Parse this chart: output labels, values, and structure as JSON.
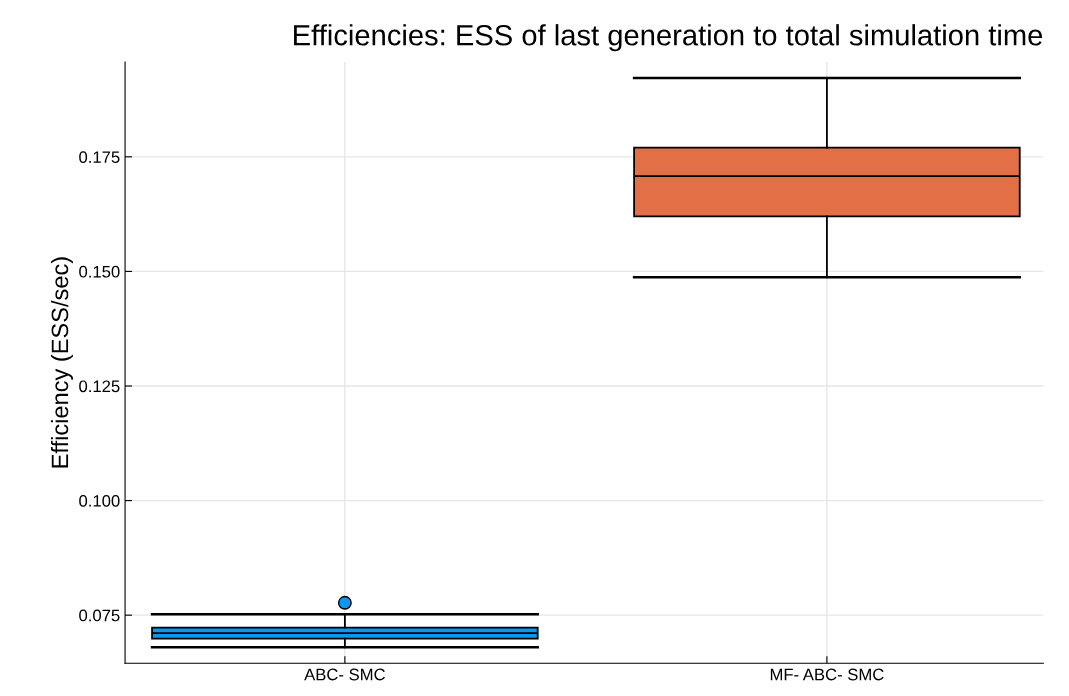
{
  "chart_data": {
    "type": "box",
    "title": "Efficiencies: ESS of last generation to total simulation time",
    "ylabel": "Efficiency (ESS/sec)",
    "categories": [
      "ABC- SMC",
      "MF- ABC- SMC"
    ],
    "boxes": [
      {
        "low": 0.068,
        "q1": 0.0699,
        "median": 0.0711,
        "q3": 0.0723,
        "high": 0.0752,
        "outliers": [
          0.0777
        ]
      },
      {
        "low": 0.1487,
        "q1": 0.162,
        "median": 0.1708,
        "q3": 0.177,
        "high": 0.1922
      }
    ],
    "colors": [
      "#0a98f0",
      "#e26f46"
    ],
    "ylim": [
      0.0645,
      0.1957
    ],
    "yticks": [
      0.075,
      {
        "value": 0.1,
        "label": "0.100"
      },
      0.125,
      {
        "value": 0.15,
        "label": "0.150"
      },
      0.175
    ],
    "grid": true
  }
}
